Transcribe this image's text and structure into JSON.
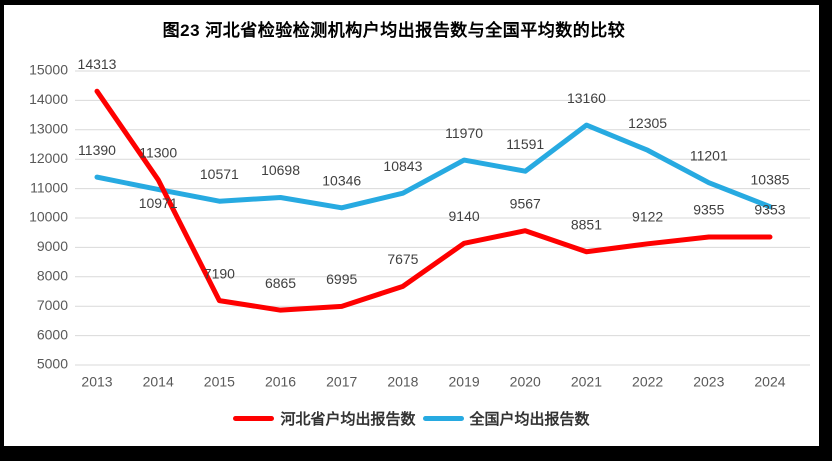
{
  "title": "图23  河北省检验检测机构户均出报告数与全国平均数的比较",
  "chart_data": {
    "type": "line",
    "categories": [
      "2013",
      "2014",
      "2015",
      "2016",
      "2017",
      "2018",
      "2019",
      "2020",
      "2021",
      "2022",
      "2023",
      "2024"
    ],
    "series": [
      {
        "name": "河北省户均出报告数",
        "color": "#fe0000",
        "values": [
          14313,
          11300,
          7190,
          6865,
          6995,
          7675,
          9140,
          9567,
          8851,
          9122,
          9355,
          9353
        ],
        "label_below_indices": []
      },
      {
        "name": "全国户均出报告数",
        "color": "#27aae1",
        "values": [
          11390,
          10971,
          10571,
          10698,
          10346,
          10843,
          11970,
          11591,
          13160,
          12305,
          11201,
          10385
        ],
        "label_below_indices": [
          1
        ]
      }
    ],
    "ylim": [
      5000,
      15000
    ],
    "ytick_step": 1000,
    "grid": "horizontal",
    "legend_position": "bottom",
    "data_labels": "on",
    "label_color": "#404040",
    "axis_tick_color": "#595959",
    "gridline_color": "#d9d9d9"
  }
}
